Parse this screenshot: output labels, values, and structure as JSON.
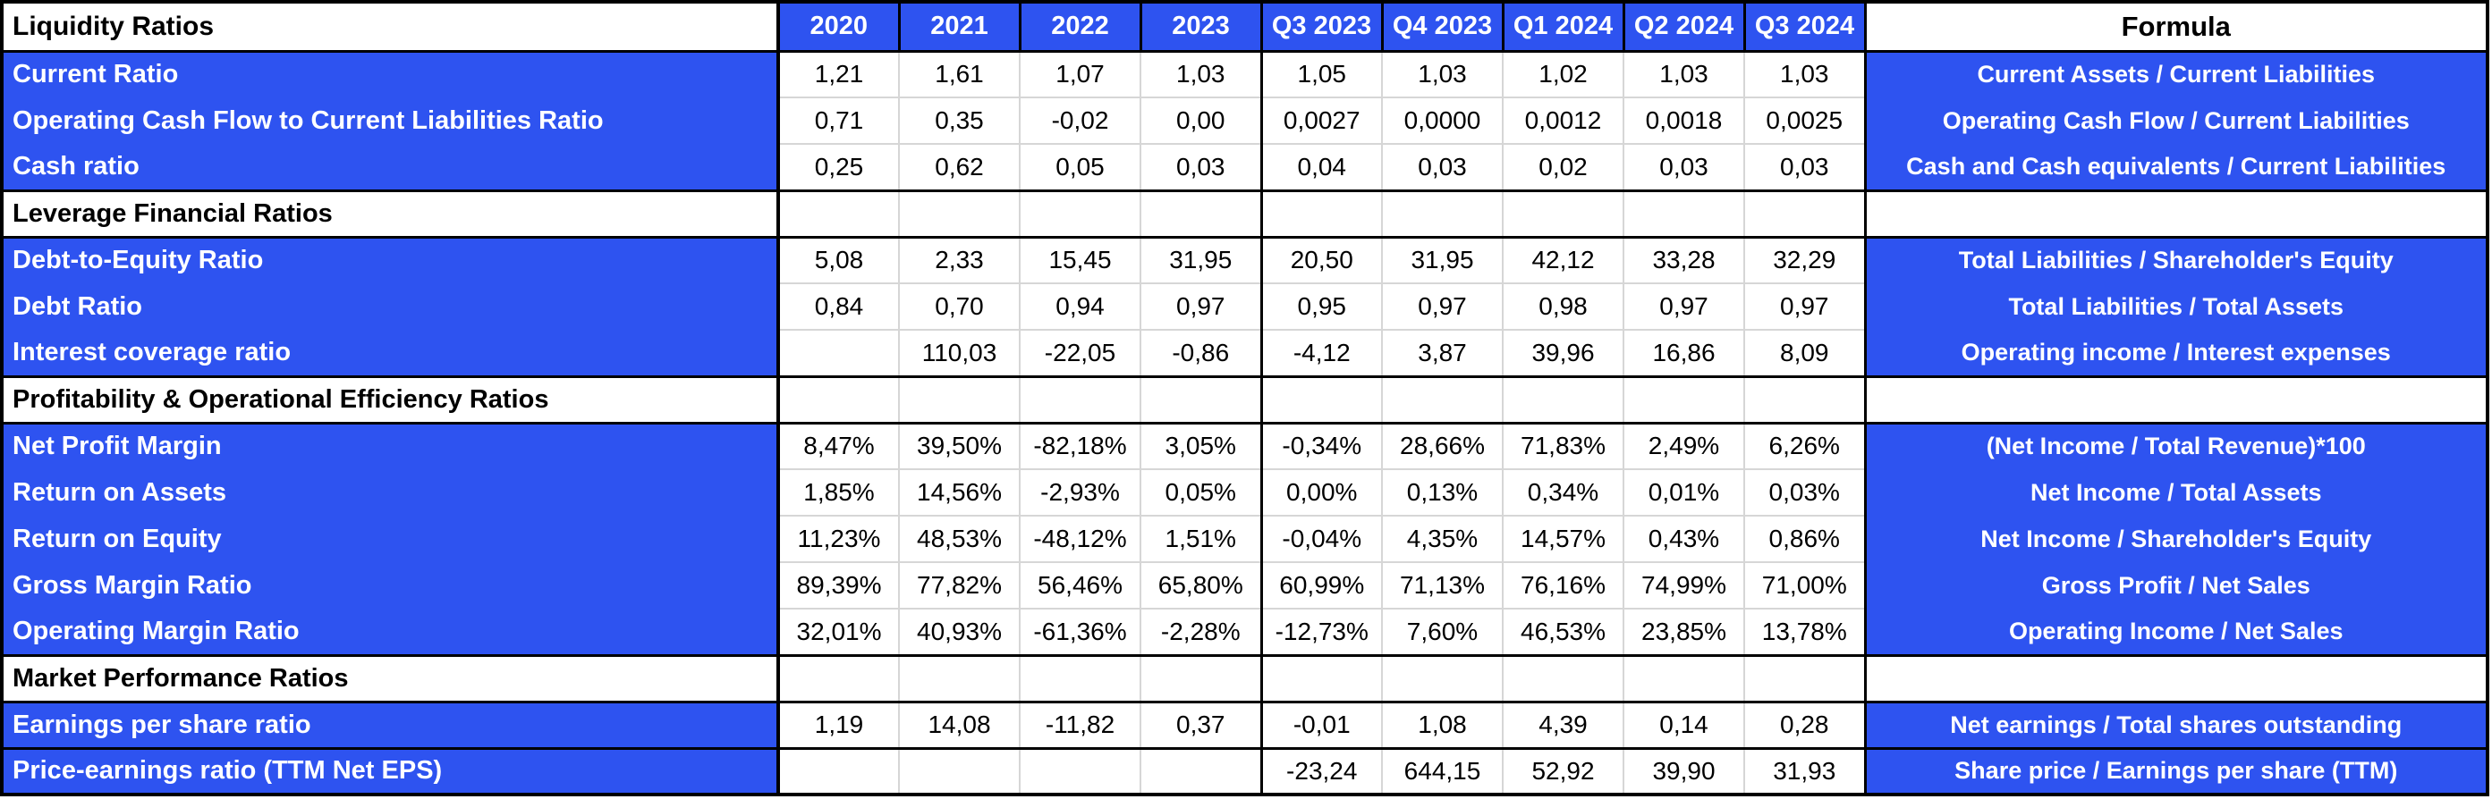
{
  "colors": {
    "accent_blue": "#2e53f0",
    "grid_gray": "#d6d6d6",
    "border_black": "#000000",
    "text_on_blue": "#ffffff",
    "text_on_white": "#000000"
  },
  "grid": {
    "header": {
      "label": "Liquidity Ratios",
      "formula": "Formula"
    },
    "columns": [
      "2020",
      "2021",
      "2022",
      "2023",
      "Q3 2023",
      "Q4 2023",
      "Q1 2024",
      "Q2 2024",
      "Q3 2024"
    ],
    "rows": [
      {
        "type": "data",
        "group_start": true,
        "label": "Current Ratio",
        "values": [
          "1,21",
          "1,61",
          "1,07",
          "1,03",
          "1,05",
          "1,03",
          "1,02",
          "1,03",
          "1,03"
        ],
        "formula": "Current Assets / Current Liabilities"
      },
      {
        "type": "data",
        "label": "Operating Cash Flow to Current Liabilities Ratio",
        "values": [
          "0,71",
          "0,35",
          "-0,02",
          "0,00",
          "0,0027",
          "0,0000",
          "0,0012",
          "0,0018",
          "0,0025"
        ],
        "formula": "Operating Cash Flow / Current Liabilities"
      },
      {
        "type": "data",
        "label": "Cash ratio",
        "values": [
          "0,25",
          "0,62",
          "0,05",
          "0,03",
          "0,04",
          "0,03",
          "0,02",
          "0,03",
          "0,03"
        ],
        "formula": "Cash and Cash equivalents / Current Liabilities"
      },
      {
        "type": "section",
        "label": "Leverage Financial Ratios"
      },
      {
        "type": "data",
        "group_start": true,
        "label": "Debt-to-Equity Ratio",
        "values": [
          "5,08",
          "2,33",
          "15,45",
          "31,95",
          "20,50",
          "31,95",
          "42,12",
          "33,28",
          "32,29"
        ],
        "formula": "Total Liabilities / Shareholder's Equity"
      },
      {
        "type": "data",
        "label": "Debt Ratio",
        "values": [
          "0,84",
          "0,70",
          "0,94",
          "0,97",
          "0,95",
          "0,97",
          "0,98",
          "0,97",
          "0,97"
        ],
        "formula": "Total Liabilities / Total Assets"
      },
      {
        "type": "data",
        "label": "Interest coverage ratio",
        "values": [
          "",
          "110,03",
          "-22,05",
          "-0,86",
          "-4,12",
          "3,87",
          "39,96",
          "16,86",
          "8,09"
        ],
        "formula": "Operating income / Interest expenses"
      },
      {
        "type": "section",
        "label": "Profitability & Operational Efficiency Ratios"
      },
      {
        "type": "data",
        "group_start": true,
        "label": "Net Profit Margin",
        "values": [
          "8,47%",
          "39,50%",
          "-82,18%",
          "3,05%",
          "-0,34%",
          "28,66%",
          "71,83%",
          "2,49%",
          "6,26%"
        ],
        "formula": "(Net Income / Total Revenue)*100"
      },
      {
        "type": "data",
        "label": "Return on Assets",
        "values": [
          "1,85%",
          "14,56%",
          "-2,93%",
          "0,05%",
          "0,00%",
          "0,13%",
          "0,34%",
          "0,01%",
          "0,03%"
        ],
        "formula": "Net Income / Total Assets"
      },
      {
        "type": "data",
        "label": "Return on Equity",
        "values": [
          "11,23%",
          "48,53%",
          "-48,12%",
          "1,51%",
          "-0,04%",
          "4,35%",
          "14,57%",
          "0,43%",
          "0,86%"
        ],
        "formula": "Net Income / Shareholder's Equity"
      },
      {
        "type": "data",
        "label": "Gross Margin Ratio",
        "values": [
          "89,39%",
          "77,82%",
          "56,46%",
          "65,80%",
          "60,99%",
          "71,13%",
          "76,16%",
          "74,99%",
          "71,00%"
        ],
        "formula": "Gross Profit / Net Sales"
      },
      {
        "type": "data",
        "label": "Operating Margin Ratio",
        "values": [
          "32,01%",
          "40,93%",
          "-61,36%",
          "-2,28%",
          "-12,73%",
          "7,60%",
          "46,53%",
          "23,85%",
          "13,78%"
        ],
        "formula": "Operating Income / Net Sales"
      },
      {
        "type": "section",
        "label": "Market Performance Ratios"
      },
      {
        "type": "data",
        "group_start": true,
        "group_end": true,
        "label": "Earnings per share ratio",
        "values": [
          "1,19",
          "14,08",
          "-11,82",
          "0,37",
          "-0,01",
          "1,08",
          "4,39",
          "0,14",
          "0,28"
        ],
        "formula": "Net earnings / Total shares outstanding"
      },
      {
        "type": "data",
        "group_start": true,
        "group_end": true,
        "label": "Price-earnings ratio (TTM Net EPS)",
        "values": [
          "",
          "",
          "",
          "",
          "-23,24",
          "644,15",
          "52,92",
          "39,90",
          "31,93"
        ],
        "formula": "Share price / Earnings per share (TTM)"
      }
    ]
  }
}
